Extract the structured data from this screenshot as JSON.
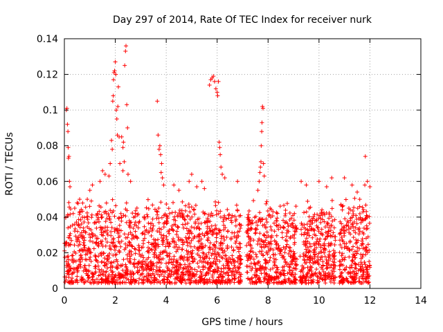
{
  "chart_data": {
    "type": "scatter",
    "title": "Day 297 of 2014, Rate Of TEC Index for receiver nurk",
    "xlabel": "GPS time / hours",
    "ylabel": "ROTI / TECUs",
    "xlim": [
      0,
      14
    ],
    "ylim": [
      0,
      0.14
    ],
    "x_ticks": [
      0,
      2,
      4,
      6,
      8,
      10,
      12,
      14
    ],
    "y_ticks": [
      0,
      0.02,
      0.04,
      0.06,
      0.08,
      0.1,
      0.12,
      0.14
    ],
    "x_tick_labels": [
      "0",
      "2",
      "4",
      "6",
      "8",
      "10",
      "12",
      "14"
    ],
    "y_tick_labels": [
      "0",
      "0.02",
      "0.04",
      "0.06",
      "0.08",
      "0.1",
      "0.12",
      "0.14"
    ],
    "grid": true,
    "marker": "+",
    "color": "#ff0000",
    "series": [
      {
        "name": "ROTI",
        "background_band": {
          "x_range": [
            0,
            12
          ],
          "y_range": [
            0.003,
            0.045
          ],
          "density_per_hour": 220
        },
        "data_gaps": [
          [
            6.95,
            7.15
          ],
          [
            9.15,
            9.25
          ],
          [
            10.65,
            10.8
          ]
        ],
        "points": [
          [
            0.08,
            0.1
          ],
          [
            0.1,
            0.101
          ],
          [
            0.12,
            0.092
          ],
          [
            0.14,
            0.088
          ],
          [
            0.15,
            0.079
          ],
          [
            0.16,
            0.073
          ],
          [
            0.18,
            0.074
          ],
          [
            0.2,
            0.06
          ],
          [
            0.22,
            0.057
          ],
          [
            0.5,
            0.048
          ],
          [
            0.6,
            0.05
          ],
          [
            0.9,
            0.05
          ],
          [
            1.0,
            0.055
          ],
          [
            1.1,
            0.058
          ],
          [
            1.4,
            0.06
          ],
          [
            1.5,
            0.066
          ],
          [
            1.6,
            0.064
          ],
          [
            1.75,
            0.063
          ],
          [
            1.8,
            0.07
          ],
          [
            1.85,
            0.083
          ],
          [
            1.88,
            0.078
          ],
          [
            1.9,
            0.105
          ],
          [
            1.92,
            0.108
          ],
          [
            1.93,
            0.117
          ],
          [
            1.95,
            0.121
          ],
          [
            1.97,
            0.122
          ],
          [
            2.0,
            0.127
          ],
          [
            2.02,
            0.12
          ],
          [
            2.04,
            0.1
          ],
          [
            2.06,
            0.095
          ],
          [
            2.08,
            0.086
          ],
          [
            2.1,
            0.102
          ],
          [
            2.12,
            0.113
          ],
          [
            2.15,
            0.085
          ],
          [
            2.18,
            0.07
          ],
          [
            2.25,
            0.085
          ],
          [
            2.3,
            0.079
          ],
          [
            2.32,
            0.082
          ],
          [
            2.35,
            0.071
          ],
          [
            2.37,
            0.125
          ],
          [
            2.4,
            0.133
          ],
          [
            2.42,
            0.136
          ],
          [
            2.45,
            0.103
          ],
          [
            2.48,
            0.09
          ],
          [
            2.3,
            0.066
          ],
          [
            2.5,
            0.064
          ],
          [
            2.6,
            0.06
          ],
          [
            3.65,
            0.105
          ],
          [
            3.68,
            0.086
          ],
          [
            3.72,
            0.078
          ],
          [
            3.75,
            0.08
          ],
          [
            3.78,
            0.075
          ],
          [
            3.8,
            0.065
          ],
          [
            3.82,
            0.07
          ],
          [
            3.85,
            0.062
          ],
          [
            3.9,
            0.058
          ],
          [
            4.3,
            0.058
          ],
          [
            4.5,
            0.055
          ],
          [
            4.9,
            0.06
          ],
          [
            5.0,
            0.064
          ],
          [
            5.2,
            0.057
          ],
          [
            5.4,
            0.06
          ],
          [
            5.5,
            0.056
          ],
          [
            5.7,
            0.114
          ],
          [
            5.75,
            0.117
          ],
          [
            5.8,
            0.118
          ],
          [
            5.85,
            0.119
          ],
          [
            5.9,
            0.116
          ],
          [
            5.95,
            0.112
          ],
          [
            6.0,
            0.11
          ],
          [
            6.02,
            0.108
          ],
          [
            6.05,
            0.116
          ],
          [
            6.08,
            0.082
          ],
          [
            6.1,
            0.079
          ],
          [
            6.12,
            0.075
          ],
          [
            6.15,
            0.068
          ],
          [
            6.2,
            0.064
          ],
          [
            6.3,
            0.062
          ],
          [
            6.8,
            0.06
          ],
          [
            7.6,
            0.055
          ],
          [
            7.65,
            0.06
          ],
          [
            7.68,
            0.065
          ],
          [
            7.7,
            0.068
          ],
          [
            7.72,
            0.071
          ],
          [
            7.73,
            0.08
          ],
          [
            7.75,
            0.088
          ],
          [
            7.76,
            0.093
          ],
          [
            7.78,
            0.102
          ],
          [
            7.8,
            0.101
          ],
          [
            7.82,
            0.07
          ],
          [
            7.85,
            0.063
          ],
          [
            9.3,
            0.06
          ],
          [
            9.5,
            0.058
          ],
          [
            10.0,
            0.06
          ],
          [
            10.3,
            0.057
          ],
          [
            10.5,
            0.062
          ],
          [
            11.0,
            0.062
          ],
          [
            11.3,
            0.058
          ],
          [
            11.5,
            0.054
          ],
          [
            11.6,
            0.05
          ],
          [
            11.8,
            0.058
          ],
          [
            11.82,
            0.074
          ],
          [
            11.9,
            0.06
          ],
          [
            12.0,
            0.057
          ]
        ]
      }
    ]
  }
}
